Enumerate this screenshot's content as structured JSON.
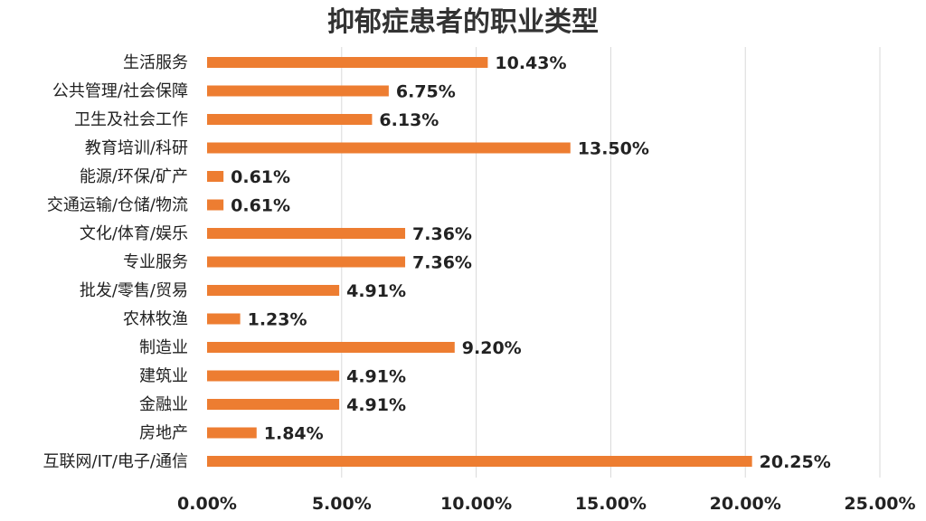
{
  "chart_data": {
    "type": "bar",
    "orientation": "horizontal",
    "title": "抑郁症患者的职业类型",
    "xlabel": "",
    "ylabel": "",
    "xlim": [
      0,
      25
    ],
    "x_ticks": [
      "0.00%",
      "5.00%",
      "10.00%",
      "15.00%",
      "20.00%",
      "25.00%"
    ],
    "grid": true,
    "categories": [
      "生活服务",
      "公共管理/社会保障",
      "卫生及社会工作",
      "教育培训/科研",
      "能源/环保/矿产",
      "交通运输/仓储/物流",
      "文化/体育/娱乐",
      "专业服务",
      "批发/零售/贸易",
      "农林牧渔",
      "制造业",
      "建筑业",
      "金融业",
      "房地产",
      "互联网/IT/电子/通信"
    ],
    "values": [
      10.43,
      6.75,
      6.13,
      13.5,
      0.61,
      0.61,
      7.36,
      7.36,
      4.91,
      1.23,
      9.2,
      4.91,
      4.91,
      1.84,
      20.25
    ],
    "labels": [
      "10.43%",
      "6.75%",
      "6.13%",
      "13.50%",
      "0.61%",
      "0.61%",
      "7.36%",
      "7.36%",
      "4.91%",
      "1.23%",
      "9.20%",
      "4.91%",
      "4.91%",
      "1.84%",
      "20.25%"
    ],
    "bar_color": "#ED7D31",
    "grid_color": "#D9D9D9"
  }
}
